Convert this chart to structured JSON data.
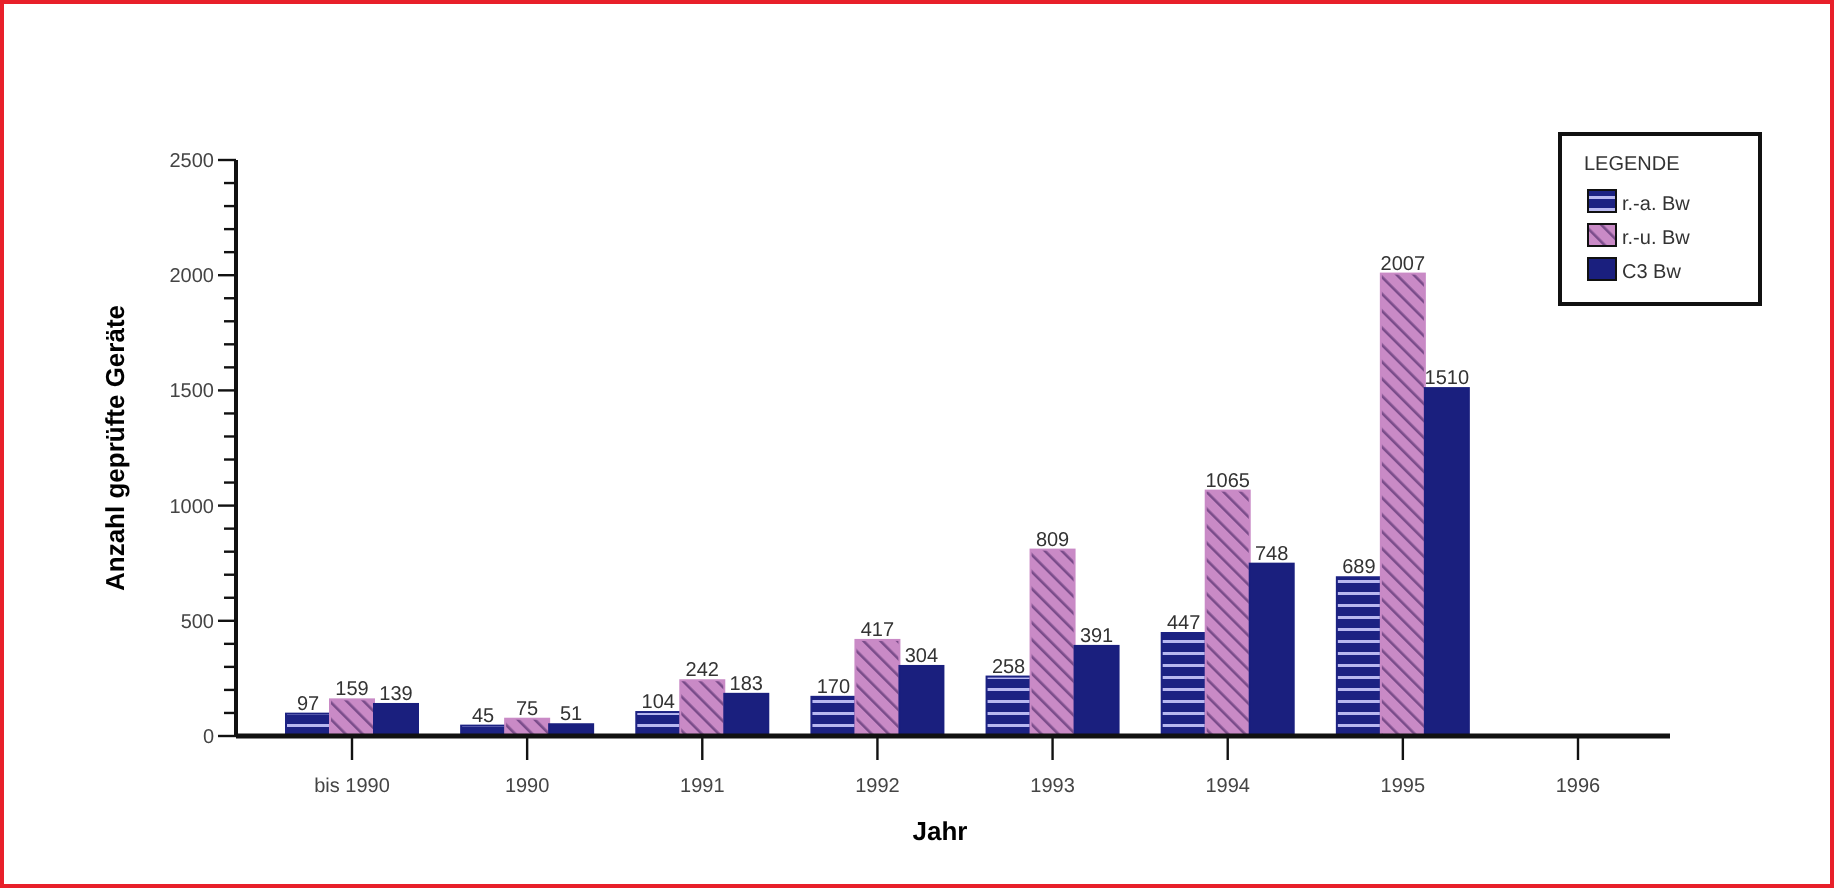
{
  "chart_data": {
    "type": "bar",
    "xlabel": "Jahr",
    "ylabel": "Anzahl geprüfte Geräte",
    "legend_title": "LEGENDE",
    "legend": "top right",
    "categories": [
      "bis 1990",
      "1990",
      "1991",
      "1992",
      "1993",
      "1994",
      "1995",
      "1996"
    ],
    "series": [
      {
        "name": "r.-a. Bw",
        "color": "#1c2283",
        "values": [
          97,
          45,
          104,
          170,
          258,
          447,
          689,
          null
        ]
      },
      {
        "name": "r.-u. Bw",
        "color": "#c98ac6",
        "values": [
          159,
          75,
          242,
          417,
          809,
          1065,
          2007,
          null
        ]
      },
      {
        "name": "C3 Bw",
        "color": "#1a1f7e",
        "values": [
          139,
          51,
          183,
          304,
          391,
          748,
          1510,
          null
        ]
      }
    ],
    "data_labels": true,
    "ylim": [
      0,
      2500
    ],
    "yticks": [
      0,
      {
        "value": 100,
        "label": null
      },
      {
        "value": 200,
        "label": null
      },
      {
        "value": 300,
        "label": null
      },
      {
        "value": 400,
        "label": null
      },
      500,
      {
        "value": 600,
        "label": null
      },
      {
        "value": 700,
        "label": null
      },
      {
        "value": 800,
        "label": null
      },
      {
        "value": 900,
        "label": null
      },
      1000,
      {
        "value": 1100,
        "label": null
      },
      {
        "value": 1200,
        "label": null
      },
      {
        "value": 1300,
        "label": null
      },
      {
        "value": 1400,
        "label": null
      },
      1500,
      {
        "value": 1600,
        "label": null
      },
      {
        "value": 1700,
        "label": null
      },
      {
        "value": 1800,
        "label": null
      },
      {
        "value": 1900,
        "label": null
      },
      2000,
      {
        "value": 2100,
        "label": null
      },
      {
        "value": 2200,
        "label": null
      },
      {
        "value": 2300,
        "label": null
      },
      {
        "value": 2400,
        "label": null
      },
      2500
    ]
  }
}
